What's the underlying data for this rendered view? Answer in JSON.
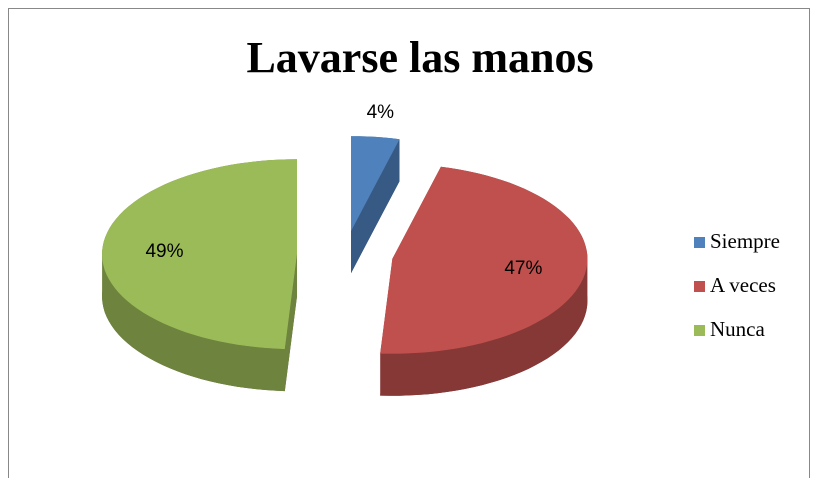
{
  "chart_data": {
    "type": "pie",
    "title": "Lavarse las manos",
    "categories": [
      "Siempre",
      "A veces",
      "Nunca"
    ],
    "values": [
      4,
      47,
      49
    ],
    "value_labels": [
      "4%",
      "47%",
      "49%"
    ],
    "colors": [
      "#4f81bd",
      "#c0504d",
      "#9bbb59"
    ],
    "legend": "right"
  }
}
